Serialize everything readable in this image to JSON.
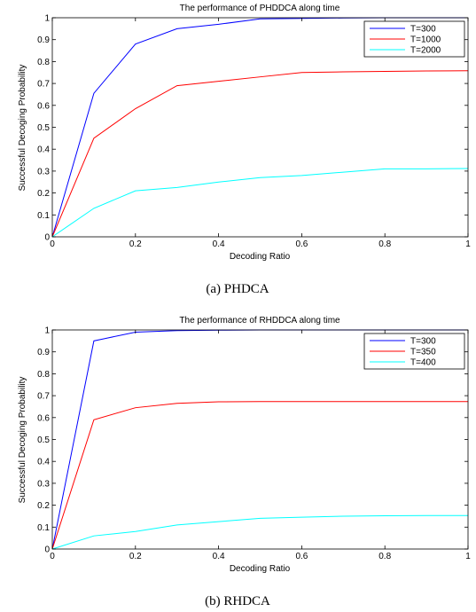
{
  "chart_data": [
    {
      "type": "line",
      "title": "The performance of PHDDCA along time",
      "xlabel": "Decoding Ratio",
      "ylabel": "Successful Decoging Probability",
      "xlim": [
        0,
        1
      ],
      "ylim": [
        0,
        1
      ],
      "xticks": [
        "0",
        "0.2",
        "0.4",
        "0.6",
        "0.8",
        "1"
      ],
      "yticks": [
        "0",
        "0.1",
        "0.2",
        "0.3",
        "0.4",
        "0.5",
        "0.6",
        "0.7",
        "0.8",
        "0.9",
        "1"
      ],
      "legend_position": "top-right",
      "grid": false,
      "caption": "(a)  PHDCA",
      "x": [
        0,
        0.1,
        0.2,
        0.3,
        0.4,
        0.5,
        0.6,
        0.7,
        0.8,
        0.9,
        1.0
      ],
      "series": [
        {
          "name": "T=300",
          "color": "#0000ff",
          "values": [
            0,
            0.655,
            0.88,
            0.95,
            0.97,
            0.995,
            0.997,
            0.999,
            1.0,
            1.0,
            1.0
          ]
        },
        {
          "name": "T=1000",
          "color": "#ff0000",
          "values": [
            0,
            0.45,
            0.585,
            0.69,
            0.71,
            0.73,
            0.75,
            0.753,
            0.755,
            0.757,
            0.758
          ]
        },
        {
          "name": "T=2000",
          "color": "#00ffff",
          "values": [
            0,
            0.13,
            0.21,
            0.225,
            0.25,
            0.27,
            0.28,
            0.295,
            0.31,
            0.31,
            0.312
          ]
        }
      ]
    },
    {
      "type": "line",
      "title": "The performance of RHDDCA along time",
      "xlabel": "Decoding Ratio",
      "ylabel": "Successful Decoging Probability",
      "xlim": [
        0,
        1
      ],
      "ylim": [
        0,
        1
      ],
      "xticks": [
        "0",
        "0.2",
        "0.4",
        "0.6",
        "0.8",
        "1"
      ],
      "yticks": [
        "0",
        "0.1",
        "0.2",
        "0.3",
        "0.4",
        "0.5",
        "0.6",
        "0.7",
        "0.8",
        "0.9",
        "1"
      ],
      "legend_position": "top-right",
      "grid": false,
      "caption": "(b)  RHDCA",
      "x": [
        0,
        0.1,
        0.2,
        0.3,
        0.4,
        0.5,
        0.6,
        0.7,
        0.8,
        0.9,
        1.0
      ],
      "series": [
        {
          "name": "T=300",
          "color": "#0000ff",
          "values": [
            0,
            0.95,
            0.99,
            0.997,
            0.999,
            1.0,
            1.0,
            1.0,
            1.0,
            1.0,
            1.0
          ]
        },
        {
          "name": "T=350",
          "color": "#ff0000",
          "values": [
            0,
            0.59,
            0.645,
            0.665,
            0.672,
            0.673,
            0.673,
            0.673,
            0.673,
            0.673,
            0.673
          ]
        },
        {
          "name": "T=400",
          "color": "#00ffff",
          "values": [
            0,
            0.06,
            0.08,
            0.11,
            0.125,
            0.14,
            0.145,
            0.15,
            0.152,
            0.153,
            0.153
          ]
        }
      ]
    }
  ]
}
